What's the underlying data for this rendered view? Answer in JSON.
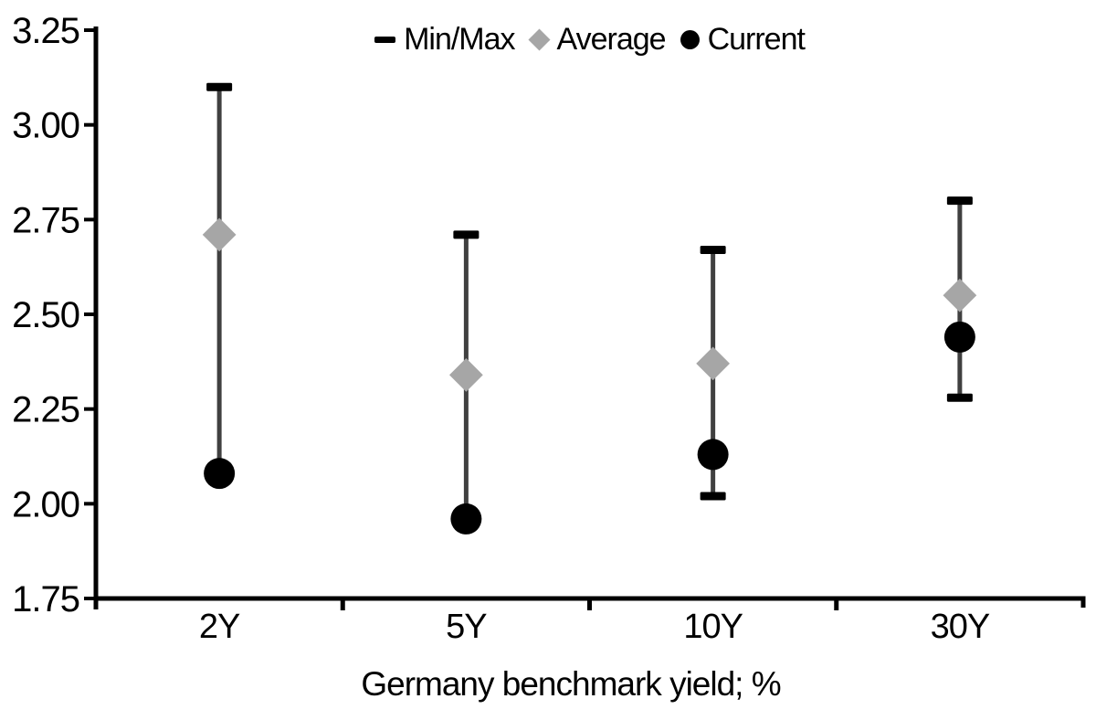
{
  "figure": {
    "kind": "range-dot-chart"
  },
  "legend": {
    "items": [
      {
        "label": "Min/Max",
        "marker": "dash-icon",
        "color": "#000000"
      },
      {
        "label": "Average",
        "marker": "diamond-icon",
        "color": "#a6a6a6"
      },
      {
        "label": "Current",
        "marker": "circle-icon",
        "color": "#000000"
      }
    ]
  },
  "chart_data": {
    "type": "scatter",
    "subtype": "min-max-range-with-average-and-current",
    "categories": [
      "2Y",
      "5Y",
      "10Y",
      "30Y"
    ],
    "series": [
      {
        "name": "Max",
        "marker": "black-cap",
        "values": [
          3.1,
          2.71,
          2.67,
          2.8
        ]
      },
      {
        "name": "Min",
        "marker": "black-cap",
        "values": [
          2.08,
          1.96,
          2.02,
          2.28
        ]
      },
      {
        "name": "Average",
        "marker": "gray-diamond",
        "values": [
          2.71,
          2.34,
          2.37,
          2.55
        ]
      },
      {
        "name": "Current",
        "marker": "black-circle",
        "values": [
          2.08,
          1.96,
          2.13,
          2.44
        ]
      }
    ],
    "title": "",
    "xlabel": "Germany benchmark yield; %",
    "ylabel": "",
    "ylim": [
      1.75,
      3.25
    ],
    "yticks": [
      3.25,
      3.0,
      2.75,
      2.5,
      2.25,
      2.0,
      1.75
    ],
    "ytick_labels": [
      "3.25",
      "3.00",
      "2.75",
      "2.50",
      "2.25",
      "2.00",
      "1.75"
    ],
    "grid": false,
    "legend_position": "top-center",
    "colors": {
      "min_max": "#000000",
      "average": "#a6a6a6",
      "current": "#000000",
      "whisker": "#404040",
      "axis": "#000000"
    }
  }
}
